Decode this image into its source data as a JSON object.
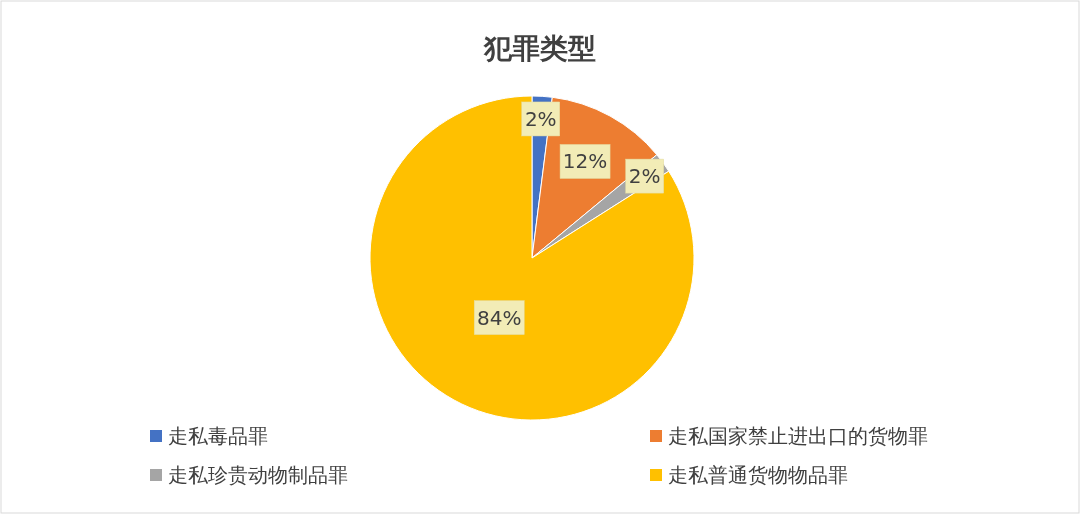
{
  "chart_data": {
    "type": "pie",
    "title": "犯罪类型",
    "categories": [
      "走私毒品罪",
      "走私国家禁止进出口的货物罪",
      "走私珍贵动物制品罪",
      "走私普通货物物品罪"
    ],
    "values": [
      2,
      12,
      2,
      84
    ],
    "colors": [
      "#4472c4",
      "#ed7d31",
      "#a5a5a5",
      "#ffc000"
    ],
    "value_labels": [
      "2%",
      "12%",
      "2%",
      "84%"
    ],
    "legend": "bottom"
  }
}
